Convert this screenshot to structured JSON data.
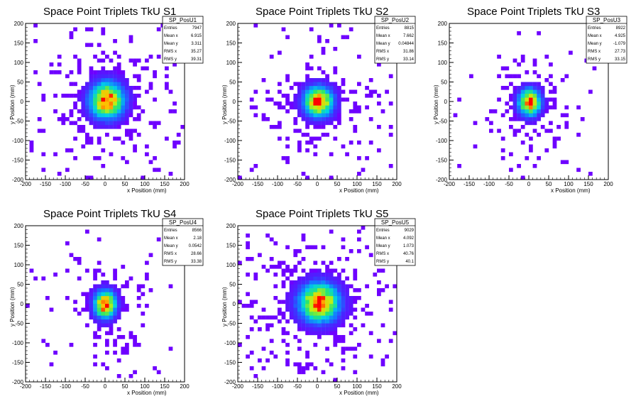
{
  "chart_data": [
    {
      "type": "heatmap",
      "title": "Space Point Triplets TkU S1",
      "xlabel": "x Position (mm)",
      "ylabel": "y Position (mm)",
      "xlim": [
        -200,
        200
      ],
      "ylim": [
        -200,
        200
      ],
      "xticks": [
        -200,
        -150,
        -100,
        -50,
        0,
        50,
        100,
        150,
        200
      ],
      "yticks": [
        -200,
        -150,
        -100,
        -50,
        0,
        50,
        100,
        150,
        200
      ],
      "stats": {
        "name": "SP_PosU1",
        "rows": [
          {
            "label": "Entries",
            "value": "7947"
          },
          {
            "label": "Mean x",
            "value": "6.915"
          },
          {
            "label": "Mean y",
            "value": "3.311"
          },
          {
            "label": "RMS x",
            "value": "35.27"
          },
          {
            "label": "RMS y",
            "value": "39.31"
          }
        ]
      },
      "peak": {
        "x": 5,
        "y": 3
      },
      "spread": {
        "x": 28,
        "y": 30
      }
    },
    {
      "type": "heatmap",
      "title": "Space Point Triplets TkU S2",
      "xlabel": "x Position (mm)",
      "ylabel": "y Position (mm)",
      "xlim": [
        -200,
        200
      ],
      "ylim": [
        -200,
        200
      ],
      "xticks": [
        -200,
        -150,
        -100,
        -50,
        0,
        50,
        100,
        150,
        200
      ],
      "yticks": [
        -200,
        -150,
        -100,
        -50,
        0,
        50,
        100,
        150,
        200
      ],
      "stats": {
        "name": "SP_PosU2",
        "rows": [
          {
            "label": "Entries",
            "value": "8815"
          },
          {
            "label": "Mean x",
            "value": "7.662"
          },
          {
            "label": "Mean y",
            "value": "0.04844"
          },
          {
            "label": "RMS x",
            "value": "31.86"
          },
          {
            "label": "RMS y",
            "value": "33.14"
          }
        ]
      },
      "peak": {
        "x": 3,
        "y": 0
      },
      "spread": {
        "x": 24,
        "y": 25
      }
    },
    {
      "type": "heatmap",
      "title": "Space Point Triplets TkU S3",
      "xlabel": "x Position (mm)",
      "ylabel": "y Position (mm)",
      "xlim": [
        -200,
        200
      ],
      "ylim": [
        -200,
        200
      ],
      "xticks": [
        -200,
        -150,
        -100,
        -50,
        0,
        50,
        100,
        150,
        200
      ],
      "yticks": [
        -200,
        -150,
        -100,
        -50,
        0,
        50,
        100,
        150,
        200
      ],
      "stats": {
        "name": "SP_PosU3",
        "rows": [
          {
            "label": "Entries",
            "value": "8922"
          },
          {
            "label": "Mean x",
            "value": "4.925"
          },
          {
            "label": "Mean y",
            "value": "-1.079"
          },
          {
            "label": "RMS x",
            "value": "27.73"
          },
          {
            "label": "RMS y",
            "value": "33.15"
          }
        ]
      },
      "peak": {
        "x": 2,
        "y": -2
      },
      "spread": {
        "x": 18,
        "y": 22
      }
    },
    {
      "type": "heatmap",
      "title": "Space Point Triplets TkU S4",
      "xlabel": "x Position (mm)",
      "ylabel": "y Position (mm)",
      "xlim": [
        -200,
        200
      ],
      "ylim": [
        -200,
        200
      ],
      "xticks": [
        -200,
        -150,
        -100,
        -50,
        0,
        50,
        100,
        150,
        200
      ],
      "yticks": [
        -200,
        -150,
        -100,
        -50,
        0,
        50,
        100,
        150,
        200
      ],
      "stats": {
        "name": "SP_PosU4",
        "rows": [
          {
            "label": "Entries",
            "value": "8566"
          },
          {
            "label": "Mean x",
            "value": "2.18"
          },
          {
            "label": "Mean y",
            "value": "0.0542"
          },
          {
            "label": "RMS x",
            "value": "28.66"
          },
          {
            "label": "RMS y",
            "value": "33.38"
          }
        ]
      },
      "peak": {
        "x": 0,
        "y": -2
      },
      "spread": {
        "x": 18,
        "y": 23
      }
    },
    {
      "type": "heatmap",
      "title": "Space Point Triplets TkU S5",
      "xlabel": "x Position (mm)",
      "ylabel": "y Position (mm)",
      "xlim": [
        -200,
        200
      ],
      "ylim": [
        -200,
        200
      ],
      "xticks": [
        -200,
        -150,
        -100,
        -50,
        0,
        50,
        100,
        150,
        200
      ],
      "yticks": [
        -200,
        -150,
        -100,
        -50,
        0,
        50,
        100,
        150,
        200
      ],
      "stats": {
        "name": "SP_PosU5",
        "rows": [
          {
            "label": "Entries",
            "value": "9029"
          },
          {
            "label": "Mean x",
            "value": "4.092"
          },
          {
            "label": "Mean y",
            "value": "1.073"
          },
          {
            "label": "RMS x",
            "value": "40.76"
          },
          {
            "label": "RMS y",
            "value": "40.1"
          }
        ]
      },
      "peak": {
        "x": 5,
        "y": 3
      },
      "spread": {
        "x": 33,
        "y": 32
      }
    }
  ]
}
